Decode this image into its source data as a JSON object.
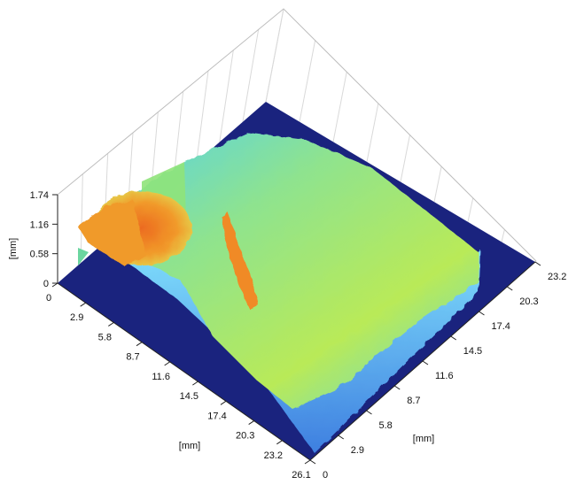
{
  "chart_data": {
    "type": "surface3d",
    "title": "",
    "axes": {
      "x": {
        "label": "[mm]",
        "ticks": [
          "0",
          "2.9",
          "5.8",
          "8.7",
          "11.6",
          "14.5",
          "17.4",
          "20.3",
          "23.2",
          "26.1"
        ],
        "range": [
          0,
          26.1
        ]
      },
      "y": {
        "label": "[mm]",
        "ticks": [
          "0",
          "2.9",
          "5.8",
          "8.7",
          "11.6",
          "14.5",
          "17.4",
          "20.3",
          "23.2"
        ],
        "range": [
          0,
          23.2
        ]
      },
      "z": {
        "label": "[mm]",
        "ticks": [
          "0",
          "0.58",
          "1.16",
          "1.74"
        ],
        "range": [
          0,
          1.74
        ]
      }
    },
    "grid": true,
    "colormap": "jet",
    "colors": {
      "base": "#1a237e",
      "low": "#62d0f0",
      "mid": "#a8ec5a",
      "high": "#f2a22c",
      "peak": "#e8651e",
      "grid": "#d9d9d9"
    }
  }
}
